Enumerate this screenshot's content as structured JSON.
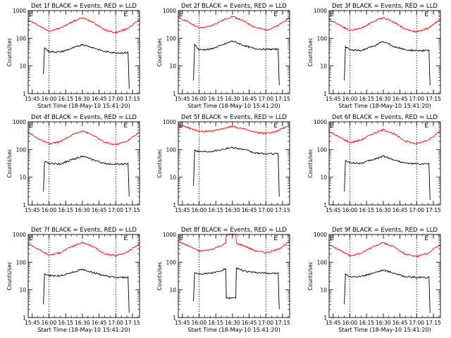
{
  "chart_data": [
    {
      "type": "line",
      "title": "Det 1f BLACK = Events, RED = LLD",
      "xlabel": "Start Time (18-May-10 15:41:20)",
      "ylabel": "Counts/sec",
      "yscale": "log",
      "ylim": [
        1,
        1000
      ],
      "xlim": [
        "15:41:20",
        "17:21:20"
      ],
      "xticks": [
        "15:45",
        "16:00",
        "16:15",
        "16:30",
        "16:45",
        "17:00",
        "17:15"
      ],
      "yticks": [
        "1",
        "10",
        "100",
        "1000"
      ],
      "vlines": [
        "16:00",
        "17:00"
      ],
      "markers": [
        "E",
        "E"
      ],
      "series": [
        {
          "color": "#ff0000",
          "x": [
            "15:41:20",
            "15:50",
            "16:00",
            "16:10",
            "16:20",
            "16:30",
            "16:40",
            "16:50",
            "17:00",
            "17:10",
            "17:21:20"
          ],
          "values": [
            450,
            300,
            180,
            230,
            380,
            550,
            380,
            200,
            160,
            220,
            460
          ]
        },
        {
          "color": "#000000",
          "x": [
            "15:55",
            "15:56",
            "16:00",
            "16:10",
            "16:20",
            "16:30",
            "16:40",
            "16:50",
            "17:00",
            "17:10",
            "17:11",
            "17:12"
          ],
          "values": [
            5,
            45,
            33,
            32,
            42,
            60,
            45,
            33,
            30,
            30,
            32,
            1.5
          ]
        }
      ]
    },
    {
      "type": "line",
      "title": "Det 2f BLACK = Events, RED = LLD",
      "xlabel": "Start Time (18-May-10 15:41:20)",
      "ylabel": "Counts/sec",
      "yscale": "log",
      "ylim": [
        1,
        1000
      ],
      "xlim": [
        "15:41:20",
        "17:21:20"
      ],
      "xticks": [
        "15:45",
        "16:00",
        "16:15",
        "16:30",
        "16:45",
        "17:00",
        "17:15"
      ],
      "yticks": [
        "1",
        "10",
        "100",
        "1000"
      ],
      "vlines": [
        "16:00",
        "17:00"
      ],
      "markers": [
        "E",
        "E"
      ],
      "series": [
        {
          "color": "#ff0000",
          "x": [
            "15:41:20",
            "15:50",
            "16:00",
            "16:10",
            "16:20",
            "16:30",
            "16:40",
            "16:50",
            "17:00",
            "17:10",
            "17:21:20"
          ],
          "values": [
            560,
            400,
            230,
            270,
            420,
            620,
            420,
            250,
            200,
            270,
            560
          ]
        },
        {
          "color": "#000000",
          "x": [
            "15:55",
            "15:56",
            "16:00",
            "16:10",
            "16:20",
            "16:30",
            "16:40",
            "16:50",
            "17:00",
            "17:10",
            "17:11",
            "17:12"
          ],
          "values": [
            3,
            60,
            38,
            40,
            55,
            80,
            55,
            42,
            40,
            40,
            42,
            2
          ]
        }
      ]
    },
    {
      "type": "line",
      "title": "Det 3f BLACK = Events, RED = LLD",
      "xlabel": "Start Time (18-May-10 15:41:20)",
      "ylabel": "Counts/sec",
      "yscale": "log",
      "ylim": [
        1,
        1000
      ],
      "xlim": [
        "15:41:20",
        "17:21:20"
      ],
      "xticks": [
        "15:45",
        "16:00",
        "16:15",
        "16:30",
        "16:45",
        "17:00",
        "17:15"
      ],
      "yticks": [
        "1",
        "10",
        "100",
        "1000"
      ],
      "vlines": [
        "16:00",
        "17:00"
      ],
      "markers": [
        "E",
        "E"
      ],
      "series": [
        {
          "color": "#ff0000",
          "x": [
            "15:41:20",
            "15:50",
            "16:00",
            "16:10",
            "16:20",
            "16:30",
            "16:40",
            "16:50",
            "17:00",
            "17:10",
            "17:21:20"
          ],
          "values": [
            480,
            320,
            190,
            230,
            380,
            560,
            380,
            210,
            170,
            230,
            480
          ]
        },
        {
          "color": "#000000",
          "x": [
            "15:55",
            "15:56",
            "16:00",
            "16:10",
            "16:20",
            "16:30",
            "16:40",
            "16:50",
            "17:00",
            "17:10",
            "17:11",
            "17:12"
          ],
          "values": [
            3,
            50,
            38,
            36,
            50,
            75,
            50,
            38,
            36,
            36,
            38,
            2
          ]
        }
      ]
    },
    {
      "type": "line",
      "title": "Det 4f BLACK = Events, RED = LLD",
      "xlabel": "",
      "ylabel": "Counts/sec",
      "yscale": "log",
      "ylim": [
        1,
        1000
      ],
      "xlim": [
        "15:41:20",
        "17:21:20"
      ],
      "xticks": [
        "15:45",
        "16:00",
        "16:15",
        "16:30",
        "16:45",
        "17:00",
        "17:15"
      ],
      "yticks": [
        "1",
        "10",
        "100",
        "1000"
      ],
      "vlines": [
        "16:00",
        "17:00"
      ],
      "markers": [
        "E",
        "E"
      ],
      "series": [
        {
          "color": "#ff0000",
          "x": [
            "15:41:20",
            "15:50",
            "16:00",
            "16:10",
            "16:20",
            "16:30",
            "16:40",
            "16:50",
            "17:00",
            "17:10",
            "17:21:20"
          ],
          "values": [
            420,
            250,
            160,
            190,
            320,
            480,
            320,
            180,
            150,
            200,
            420
          ]
        },
        {
          "color": "#000000",
          "x": [
            "15:55",
            "15:56",
            "16:00",
            "16:10",
            "16:20",
            "16:30",
            "16:40",
            "16:50",
            "17:00",
            "17:10",
            "17:11",
            "17:12"
          ],
          "values": [
            3,
            35,
            32,
            30,
            42,
            58,
            42,
            31,
            30,
            30,
            32,
            2
          ]
        }
      ]
    },
    {
      "type": "line",
      "title": "Det 5f BLACK = Events, RED = LLD",
      "xlabel": "",
      "ylabel": "Counts/sec",
      "yscale": "log",
      "ylim": [
        1,
        1000
      ],
      "xlim": [
        "15:41:20",
        "17:21:20"
      ],
      "xticks": [
        "15:45",
        "16:00",
        "16:15",
        "16:30",
        "16:45",
        "17:00",
        "17:15"
      ],
      "yticks": [
        "1",
        "10",
        "100",
        "1000"
      ],
      "vlines": [
        "16:00",
        "17:00"
      ],
      "markers": [
        "E",
        "E"
      ],
      "series": [
        {
          "color": "#ff0000",
          "x": [
            "15:41:20",
            "15:50",
            "16:00",
            "16:10",
            "16:20",
            "16:30",
            "16:40",
            "16:50",
            "17:00",
            "17:10",
            "17:21:20"
          ],
          "values": [
            750,
            620,
            450,
            450,
            550,
            700,
            550,
            420,
            380,
            450,
            780
          ]
        },
        {
          "color": "#000000",
          "x": [
            "15:55",
            "15:56",
            "16:00",
            "16:10",
            "16:20",
            "16:30",
            "16:40",
            "16:50",
            "17:00",
            "17:10",
            "17:11",
            "17:12"
          ],
          "values": [
            5,
            95,
            85,
            85,
            100,
            120,
            100,
            75,
            70,
            70,
            72,
            2
          ]
        }
      ]
    },
    {
      "type": "line",
      "title": "Det 6f BLACK = Events, RED = LLD",
      "xlabel": "",
      "ylabel": "Counts/sec",
      "yscale": "log",
      "ylim": [
        1,
        1000
      ],
      "xlim": [
        "15:41:20",
        "17:21:20"
      ],
      "xticks": [
        "15:45",
        "16:00",
        "16:15",
        "16:30",
        "16:45",
        "17:00",
        "17:15"
      ],
      "yticks": [
        "1",
        "10",
        "100",
        "1000"
      ],
      "vlines": [
        "16:00",
        "17:00"
      ],
      "markers": [
        "E",
        "E"
      ],
      "series": [
        {
          "color": "#ff0000",
          "x": [
            "15:41:20",
            "15:50",
            "16:00",
            "16:10",
            "16:20",
            "16:30",
            "16:40",
            "16:50",
            "17:00",
            "17:10",
            "17:21:20"
          ],
          "values": [
            450,
            290,
            180,
            220,
            360,
            520,
            360,
            200,
            160,
            220,
            460
          ]
        },
        {
          "color": "#000000",
          "x": [
            "15:55",
            "15:56",
            "16:00",
            "16:10",
            "16:20",
            "16:30",
            "16:40",
            "16:50",
            "17:00",
            "17:10",
            "17:11",
            "17:12"
          ],
          "values": [
            3,
            40,
            33,
            32,
            42,
            58,
            42,
            32,
            30,
            30,
            32,
            1.5
          ]
        }
      ]
    },
    {
      "type": "line",
      "title": "Det 7f BLACK = Events, RED = LLD",
      "xlabel": "Start Time (18-May-10 15:41:20)",
      "ylabel": "Counts/sec",
      "yscale": "log",
      "ylim": [
        1,
        1000
      ],
      "xlim": [
        "15:41:20",
        "17:21:20"
      ],
      "xticks": [
        "15:45",
        "16:00",
        "16:15",
        "16:30",
        "16:45",
        "17:00",
        "17:15"
      ],
      "yticks": [
        "1",
        "10",
        "100",
        "1000"
      ],
      "vlines": [
        "16:00",
        "17:00"
      ],
      "markers": [
        "E",
        "E"
      ],
      "series": [
        {
          "color": "#ff0000",
          "x": [
            "15:41:20",
            "15:50",
            "16:00",
            "16:10",
            "16:20",
            "16:30",
            "16:40",
            "16:50",
            "17:00",
            "17:10",
            "17:21:20"
          ],
          "values": [
            480,
            300,
            180,
            220,
            360,
            520,
            360,
            200,
            170,
            230,
            460
          ]
        },
        {
          "color": "#000000",
          "x": [
            "15:55",
            "15:56",
            "16:00",
            "16:10",
            "16:20",
            "16:30",
            "16:40",
            "16:50",
            "17:00",
            "17:10",
            "17:11",
            "17:12"
          ],
          "values": [
            3,
            38,
            33,
            32,
            42,
            55,
            42,
            32,
            28,
            28,
            30,
            1.5
          ]
        }
      ]
    },
    {
      "type": "line",
      "title": "Det 8f BLACK = Events, RED = LLD",
      "xlabel": "Start Time (18-May-10 15:41:20)",
      "ylabel": "Counts/sec",
      "yscale": "log",
      "ylim": [
        1,
        1000
      ],
      "xlim": [
        "15:41:20",
        "17:21:20"
      ],
      "xticks": [
        "15:45",
        "16:00",
        "16:15",
        "16:30",
        "16:45",
        "17:00",
        "17:15"
      ],
      "yticks": [
        "1",
        "10",
        "100",
        "1000"
      ],
      "vlines": [
        "16:00",
        "17:00"
      ],
      "markers": [
        "E",
        "E"
      ],
      "series": [
        {
          "color": "#ff0000",
          "x": [
            "15:41:20",
            "15:50",
            "16:00",
            "16:10",
            "16:20",
            "16:24",
            "16:24:30",
            "16:33",
            "16:33:30",
            "16:40",
            "16:50",
            "17:00",
            "17:10",
            "17:21:20"
          ],
          "values": [
            550,
            400,
            250,
            280,
            400,
            480,
            1000,
            1000,
            480,
            400,
            260,
            220,
            280,
            550
          ]
        },
        {
          "color": "#000000",
          "x": [
            "15:55",
            "15:56",
            "16:00",
            "16:10",
            "16:20",
            "16:24",
            "16:24:30",
            "16:33",
            "16:33:30",
            "16:40",
            "16:50",
            "17:00",
            "17:10",
            "17:11",
            "17:12"
          ],
          "values": [
            4,
            42,
            38,
            40,
            48,
            60,
            5,
            5,
            62,
            48,
            42,
            40,
            40,
            42,
            2
          ]
        }
      ]
    },
    {
      "type": "line",
      "title": "Det 9f BLACK = Events, RED = LLD",
      "xlabel": "Start Time (18-May-10 15:41:20)",
      "ylabel": "Counts/sec",
      "yscale": "log",
      "ylim": [
        1,
        1000
      ],
      "xlim": [
        "15:41:20",
        "17:21:20"
      ],
      "xticks": [
        "15:45",
        "16:00",
        "16:15",
        "16:30",
        "16:45",
        "17:00",
        "17:15"
      ],
      "yticks": [
        "1",
        "10",
        "100",
        "1000"
      ],
      "vlines": [
        "16:00",
        "17:00"
      ],
      "markers": [
        "E",
        "E"
      ],
      "series": [
        {
          "color": "#ff0000",
          "x": [
            "15:41:20",
            "15:50",
            "16:00",
            "16:10",
            "16:20",
            "16:30",
            "16:40",
            "16:50",
            "17:00",
            "17:10",
            "17:21:20"
          ],
          "values": [
            450,
            280,
            170,
            210,
            350,
            500,
            350,
            190,
            160,
            210,
            440
          ]
        },
        {
          "color": "#000000",
          "x": [
            "15:55",
            "15:56",
            "16:00",
            "16:10",
            "16:20",
            "16:30",
            "16:40",
            "16:50",
            "17:00",
            "17:10",
            "17:11",
            "17:12"
          ],
          "values": [
            3,
            38,
            30,
            30,
            40,
            52,
            40,
            30,
            28,
            28,
            30,
            1.5
          ]
        }
      ]
    }
  ]
}
